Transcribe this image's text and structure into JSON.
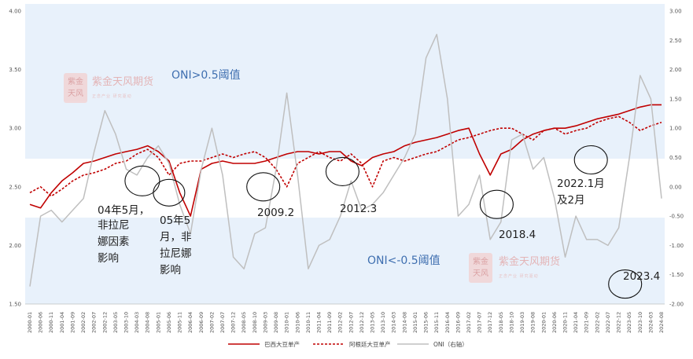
{
  "chart_data": {
    "type": "line",
    "left_axis": {
      "ticks": [
        "4.00",
        "3.50",
        "3.00",
        "2.50",
        "2.00",
        "1.50"
      ],
      "ylim": [
        1.5,
        4.0
      ]
    },
    "right_axis": {
      "ticks": [
        "3.00",
        "2.50",
        "2.00",
        "1.50",
        "1.00",
        "0.50",
        "0.00",
        "-0.50",
        "-1.00",
        "-1.50",
        "-2.00"
      ],
      "ylim": [
        -2.0,
        3.0
      ]
    },
    "x_labels": [
      "2000-01",
      "2000-06",
      "2000-11",
      "2001-04",
      "2001-09",
      "2002-02",
      "2002-07",
      "2002-12",
      "2003-05",
      "2003-10",
      "2004-03",
      "2004-08",
      "2005-01",
      "2005-06",
      "2005-11",
      "2006-04",
      "2006-09",
      "2007-02",
      "2007-07",
      "2007-12",
      "2008-05",
      "2008-10",
      "2009-03",
      "2009-08",
      "2010-01",
      "2010-06",
      "2010-11",
      "2011-04",
      "2011-09",
      "2012-02",
      "2012-07",
      "2012-12",
      "2013-05",
      "2013-10",
      "2014-03",
      "2014-08",
      "2015-01",
      "2015-06",
      "2015-11",
      "2016-04",
      "2016-09",
      "2017-02",
      "2017-07",
      "2017-12",
      "2018-05",
      "2018-10",
      "2019-03",
      "2019-08",
      "2020-01",
      "2020-06",
      "2020-11",
      "2021-04",
      "2021-09",
      "2022-02",
      "2022-07",
      "2022-12",
      "2023-05",
      "2023-10",
      "2024-03",
      "2024-08"
    ],
    "series": [
      {
        "name": "巴西大豆单产",
        "style": "solid",
        "color": "#c00000",
        "axis": "left",
        "values": [
          2.35,
          2.32,
          2.45,
          2.55,
          2.62,
          2.7,
          2.72,
          2.75,
          2.78,
          2.8,
          2.82,
          2.85,
          2.8,
          2.72,
          2.45,
          2.25,
          2.65,
          2.7,
          2.72,
          2.7,
          2.7,
          2.7,
          2.72,
          2.75,
          2.78,
          2.8,
          2.8,
          2.78,
          2.8,
          2.8,
          2.72,
          2.68,
          2.75,
          2.78,
          2.8,
          2.85,
          2.88,
          2.9,
          2.92,
          2.95,
          2.98,
          3.0,
          2.78,
          2.6,
          2.78,
          2.82,
          2.9,
          2.95,
          2.98,
          3.0,
          3.0,
          3.02,
          3.05,
          3.08,
          3.1,
          3.12,
          3.15,
          3.18,
          3.2,
          3.2
        ]
      },
      {
        "name": "阿根廷大豆单产",
        "style": "dashed",
        "color": "#c00000",
        "axis": "left",
        "values": [
          2.45,
          2.5,
          2.42,
          2.48,
          2.55,
          2.6,
          2.62,
          2.65,
          2.7,
          2.72,
          2.78,
          2.82,
          2.75,
          2.6,
          2.7,
          2.72,
          2.72,
          2.75,
          2.78,
          2.75,
          2.78,
          2.8,
          2.75,
          2.65,
          2.5,
          2.7,
          2.75,
          2.8,
          2.75,
          2.72,
          2.78,
          2.7,
          2.5,
          2.72,
          2.75,
          2.72,
          2.75,
          2.78,
          2.8,
          2.85,
          2.9,
          2.92,
          2.95,
          2.98,
          3.0,
          3.0,
          2.95,
          2.9,
          2.98,
          3.0,
          2.95,
          2.98,
          3.0,
          3.05,
          3.08,
          3.1,
          3.05,
          2.98,
          3.02,
          3.05
        ]
      },
      {
        "name": "ONI（右轴）",
        "style": "solid",
        "color": "#bfbfbf",
        "axis": "right",
        "values": [
          -1.7,
          -0.5,
          -0.4,
          -0.6,
          -0.4,
          -0.2,
          0.6,
          1.3,
          0.9,
          0.3,
          0.2,
          0.5,
          0.7,
          0.4,
          -0.3,
          -0.8,
          0.3,
          1.0,
          0.2,
          -1.2,
          -1.4,
          -0.8,
          -0.7,
          0.3,
          1.6,
          0.2,
          -1.4,
          -1.0,
          -0.9,
          -0.5,
          0.1,
          -0.4,
          -0.3,
          -0.1,
          0.2,
          0.5,
          0.9,
          2.2,
          2.6,
          1.5,
          -0.5,
          -0.3,
          0.2,
          -0.9,
          -0.6,
          0.8,
          0.9,
          0.3,
          0.5,
          -0.2,
          -1.2,
          -0.5,
          -0.9,
          -0.9,
          -1.0,
          -0.7,
          0.5,
          1.9,
          1.5,
          -0.2
        ]
      }
    ],
    "bands": [
      {
        "label": "ONI>0.5阈值",
        "from": 0.5,
        "to": 3.0
      },
      {
        "label": "ONI<-0.5阈值",
        "from": -2.0,
        "to": -0.5
      }
    ],
    "annotations": [
      {
        "lines": [
          "04年5月，",
          "非拉尼",
          "娜因素",
          "影响"
        ],
        "ref": "2004-05"
      },
      {
        "lines": [
          "05年5",
          "月，非",
          "拉尼娜",
          "影响"
        ],
        "ref": "2005-05"
      },
      {
        "lines": [
          "2009.2"
        ],
        "ref": "2009-02"
      },
      {
        "lines": [
          "2012.3"
        ],
        "ref": "2012-03"
      },
      {
        "lines": [
          "2018.4"
        ],
        "ref": "2018-04"
      },
      {
        "lines": [
          "2022.1月",
          "及2月"
        ],
        "ref": "2022-01"
      },
      {
        "lines": [
          "2023.4"
        ],
        "ref": "2023-04"
      }
    ],
    "legend": [
      "巴西大豆单产",
      "阿根廷大豆单产",
      "ONI（右轴）"
    ],
    "legend_position": "bottom"
  },
  "watermark": {
    "brand": "紫金天风期货",
    "sub": "正念产业 研究驱动"
  },
  "colors": {
    "band": "#e8f1fb",
    "brazil": "#c00000",
    "argentina": "#c00000",
    "oni": "#bfbfbf",
    "band_text": "#3f6fb0"
  }
}
